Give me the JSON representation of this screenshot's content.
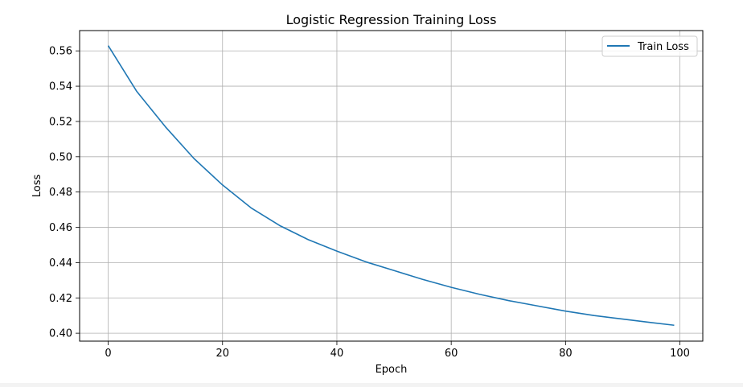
{
  "chart_data": {
    "type": "line",
    "title": "Logistic Regression Training Loss",
    "xlabel": "Epoch",
    "ylabel": "Loss",
    "xlim": [
      -5,
      104
    ],
    "ylim": [
      0.3955,
      0.5715
    ],
    "xticks": [
      0,
      20,
      40,
      60,
      80,
      100
    ],
    "yticks": [
      0.4,
      0.42,
      0.44,
      0.46,
      0.48,
      0.5,
      0.52,
      0.54,
      0.56
    ],
    "xtick_labels": [
      "0",
      "20",
      "40",
      "60",
      "80",
      "100"
    ],
    "ytick_labels": [
      "0.40",
      "0.42",
      "0.44",
      "0.46",
      "0.48",
      "0.50",
      "0.52",
      "0.54",
      "0.56"
    ],
    "grid": true,
    "legend": {
      "position": "top-right"
    },
    "series": [
      {
        "name": "Train Loss",
        "color": "#1f77b4",
        "x": [
          0,
          5,
          10,
          15,
          20,
          25,
          30,
          35,
          40,
          45,
          50,
          55,
          60,
          65,
          70,
          75,
          80,
          85,
          90,
          95,
          99
        ],
        "values": [
          0.563,
          0.537,
          0.517,
          0.499,
          0.484,
          0.471,
          0.461,
          0.453,
          0.4465,
          0.4405,
          0.4355,
          0.4305,
          0.426,
          0.422,
          0.4185,
          0.4155,
          0.4125,
          0.41,
          0.408,
          0.406,
          0.4045
        ]
      }
    ]
  }
}
